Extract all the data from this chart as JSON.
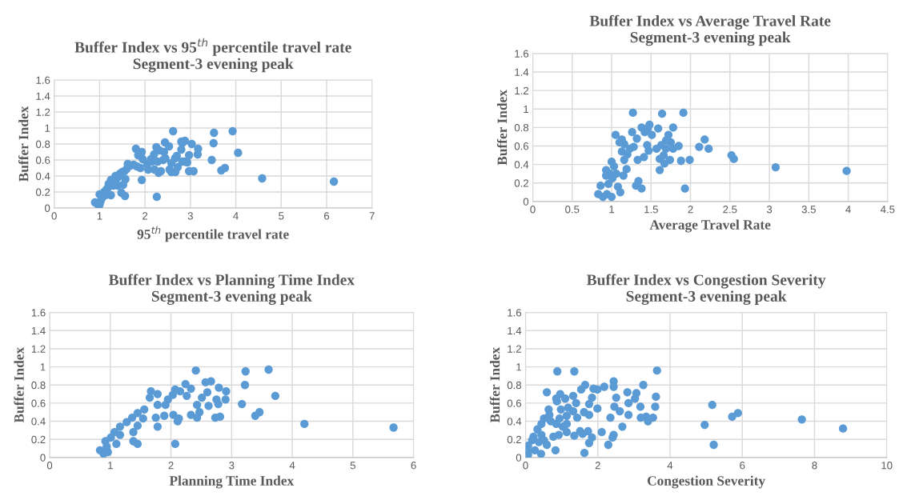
{
  "chart_data": [
    {
      "type": "scatter",
      "title": "Buffer Index vs 95$^{th}$ percentile travel rate\nSegment-3 evening peak",
      "xlabel": "95$^{th}$ percentile travel rate",
      "ylabel": "Buffer Index",
      "xlim": [
        0,
        7
      ],
      "xticks": [
        0,
        1,
        2,
        3,
        4,
        5,
        6,
        7
      ],
      "ylim": [
        0,
        1.6
      ],
      "yticks": [
        0,
        0.2,
        0.4,
        0.6,
        0.8,
        1,
        1.2,
        1.4,
        1.6
      ],
      "grid": true,
      "legend": false,
      "marker": "circle",
      "series": [
        {
          "color": "#5b9bd5",
          "x": [
            2.62,
            3.52,
            3.93,
            3.51,
            4.05,
            3.47,
            3.68,
            3.76,
            4.58,
            6.16,
            2.26,
            1.93,
            3.03,
            3.17,
            3.16,
            2.97,
            2.93,
            2.97,
            3.07,
            2.82,
            2.87,
            2.8,
            2.8,
            2.88,
            2.82,
            2.7,
            2.66,
            2.58,
            2.54,
            2.58,
            2.67,
            2.72,
            2.44,
            2.53,
            2.25,
            2.32,
            2.42,
            2.3,
            2.35,
            2.21,
            2.13,
            2.2,
            2.4,
            2.45,
            2.28,
            1.8,
            1.85,
            1.93,
            1.95,
            1.9,
            2.05,
            2.07,
            2.15,
            1.75,
            1.68,
            1.6,
            1.55,
            1.45,
            1.4,
            1.35,
            1.5,
            1.52,
            1.57,
            1.48,
            1.56,
            1.32,
            1.25,
            1.2,
            1.3,
            1.18,
            1.15,
            1.1,
            1.13,
            1.0,
            1.05,
            0.9,
            0.95,
            1.0,
            1.02,
            1.25,
            1.4,
            1.62,
            1.82
          ],
          "values": [
            0.96,
            0.94,
            0.96,
            0.81,
            0.69,
            0.6,
            0.47,
            0.5,
            0.37,
            0.33,
            0.14,
            0.35,
            0.8,
            0.74,
            0.67,
            0.66,
            0.57,
            0.46,
            0.46,
            0.58,
            0.58,
            0.73,
            0.83,
            0.84,
            0.81,
            0.65,
            0.62,
            0.56,
            0.48,
            0.45,
            0.45,
            0.51,
            0.82,
            0.77,
            0.76,
            0.72,
            0.7,
            0.44,
            0.46,
            0.48,
            0.61,
            0.67,
            0.6,
            0.62,
            0.58,
            0.74,
            0.66,
            0.7,
            0.61,
            0.5,
            0.55,
            0.48,
            0.58,
            0.54,
            0.53,
            0.49,
            0.46,
            0.43,
            0.38,
            0.4,
            0.45,
            0.29,
            0.36,
            0.19,
            0.15,
            0.33,
            0.35,
            0.3,
            0.28,
            0.25,
            0.23,
            0.2,
            0.16,
            0.17,
            0.12,
            0.07,
            0.05,
            0.04,
            0.08,
            0.16,
            0.28,
            0.55,
            0.52
          ]
        }
      ]
    },
    {
      "type": "scatter",
      "title": "Buffer Index vs Average Travel Rate\nSegment-3 evening peak",
      "xlabel": "Average Travel Rate",
      "ylabel": "Buffer Index",
      "xlim": [
        0,
        4.5
      ],
      "xticks": [
        0,
        0.5,
        1,
        1.5,
        2,
        2.5,
        3,
        3.5,
        4,
        4.5
      ],
      "ylim": [
        0,
        1.6
      ],
      "yticks": [
        0,
        0.2,
        0.4,
        0.6,
        0.8,
        1,
        1.2,
        1.4,
        1.6
      ],
      "grid": true,
      "legend": false,
      "marker": "circle",
      "series": [
        {
          "color": "#5b9bd5",
          "x": [
            1.27,
            1.64,
            1.91,
            3.98,
            3.08,
            2.52,
            2.55,
            2.11,
            2.18,
            2.23,
            1.99,
            1.88,
            1.93,
            1.85,
            1.78,
            1.72,
            1.69,
            1.75,
            1.78,
            1.69,
            1.74,
            1.67,
            1.66,
            1.61,
            1.61,
            1.63,
            1.57,
            1.59,
            1.51,
            1.48,
            1.46,
            1.42,
            1.38,
            1.47,
            1.45,
            1.41,
            1.33,
            1.26,
            1.32,
            1.28,
            1.23,
            1.2,
            1.16,
            1.13,
            1.1,
            1.05,
            1.13,
            1.16,
            1.34,
            1.31,
            1.38,
            1.19,
            1.15,
            1.11,
            1.0,
            1.03,
            0.93,
            0.98,
            0.93,
            1.01,
            0.96,
            0.86,
            0.83,
            0.89,
            0.94,
            1.0,
            1.08,
            1.06
          ],
          "values": [
            0.96,
            0.95,
            0.96,
            0.33,
            0.37,
            0.5,
            0.46,
            0.59,
            0.67,
            0.57,
            0.45,
            0.44,
            0.14,
            0.6,
            0.8,
            0.72,
            0.66,
            0.64,
            0.57,
            0.57,
            0.45,
            0.41,
            0.5,
            0.46,
            0.34,
            0.61,
            0.57,
            0.79,
            0.72,
            0.83,
            0.79,
            0.75,
            0.8,
            0.55,
            0.61,
            0.48,
            0.45,
            0.75,
            0.68,
            0.59,
            0.57,
            0.51,
            0.45,
            0.54,
            0.64,
            0.72,
            0.67,
            0.62,
            0.22,
            0.17,
            0.14,
            0.35,
            0.28,
            0.1,
            0.43,
            0.38,
            0.34,
            0.3,
            0.28,
            0.25,
            0.19,
            0.17,
            0.08,
            0.05,
            0.08,
            0.05,
            0.16,
            0.3
          ]
        }
      ]
    },
    {
      "type": "scatter",
      "title": "Buffer Index vs Planning Time Index\nSegment-3 evening peak",
      "xlabel": "Planning Time Index",
      "ylabel": "Buffer Index",
      "xlim": [
        0,
        6
      ],
      "xticks": [
        0,
        1,
        2,
        3,
        4,
        5,
        6
      ],
      "ylim": [
        0,
        1.6
      ],
      "yticks": [
        0,
        0.2,
        0.4,
        0.6,
        0.8,
        1,
        1.2,
        1.4,
        1.6
      ],
      "grid": true,
      "legend": false,
      "marker": "circle",
      "series": [
        {
          "color": "#5b9bd5",
          "x": [
            2.41,
            3.23,
            3.61,
            3.22,
            3.72,
            3.17,
            3.39,
            3.46,
            4.2,
            5.67,
            2.07,
            1.78,
            2.57,
            2.66,
            2.6,
            2.79,
            2.91,
            2.9,
            2.75,
            2.78,
            2.62,
            2.43,
            2.47,
            2.33,
            2.43,
            2.73,
            2.81,
            2.51,
            2.24,
            2.33,
            2.26,
            2.07,
            2.15,
            2.03,
            1.95,
            1.91,
            2.04,
            2.13,
            2.11,
            1.67,
            1.78,
            1.65,
            1.78,
            1.89,
            1.75,
            1.56,
            1.54,
            1.45,
            1.36,
            1.27,
            1.16,
            1.45,
            1.38,
            1.38,
            1.45,
            1.07,
            1.16,
            1.01,
            0.92,
            1.1,
            0.83,
            0.89,
            0.96,
            0.94
          ],
          "values": [
            0.96,
            0.95,
            0.97,
            0.8,
            0.68,
            0.59,
            0.46,
            0.5,
            0.37,
            0.33,
            0.15,
            0.34,
            0.83,
            0.84,
            0.72,
            0.77,
            0.73,
            0.64,
            0.64,
            0.59,
            0.57,
            0.58,
            0.5,
            0.47,
            0.44,
            0.44,
            0.45,
            0.66,
            0.81,
            0.76,
            0.68,
            0.75,
            0.73,
            0.69,
            0.64,
            0.58,
            0.47,
            0.43,
            0.4,
            0.73,
            0.7,
            0.66,
            0.58,
            0.46,
            0.44,
            0.53,
            0.43,
            0.49,
            0.44,
            0.39,
            0.34,
            0.35,
            0.28,
            0.18,
            0.15,
            0.28,
            0.25,
            0.22,
            0.18,
            0.15,
            0.08,
            0.04,
            0.06,
            0.12
          ]
        }
      ]
    },
    {
      "type": "scatter",
      "title": "Buffer Index vs Congestion Severity\nSegment-3 evening peak",
      "xlabel": "Congestion Severity",
      "ylabel": "Buffer Index",
      "xlim": [
        0,
        10
      ],
      "xticks": [
        0,
        2,
        4,
        6,
        8,
        10
      ],
      "ylim": [
        0,
        1.6
      ],
      "yticks": [
        0,
        0.2,
        0.4,
        0.6,
        0.8,
        1,
        1.2,
        1.4,
        1.6
      ],
      "grid": true,
      "legend": false,
      "marker": "circle",
      "series": [
        {
          "color": "#5b9bd5",
          "x": [
            0.88,
            1.35,
            3.64,
            8.79,
            7.65,
            5.17,
            4.96,
            5.21,
            5.72,
            5.88,
            3.26,
            3.61,
            3.59,
            3.53,
            3.39,
            3.34,
            3.19,
            3.18,
            3.07,
            3.03,
            2.85,
            2.85,
            2.82,
            2.68,
            2.61,
            2.51,
            2.44,
            2.44,
            2.46,
            2.44,
            2.41,
            2.29,
            2.35,
            2.18,
            2.11,
            1.99,
            1.88,
            1.99,
            1.84,
            1.76,
            1.76,
            1.65,
            1.54,
            1.62,
            1.51,
            1.58,
            1.73,
            1.84,
            1.76,
            1.63,
            1.35,
            1.32,
            1.4,
            1.32,
            1.43,
            1.18,
            1.14,
            1.1,
            0.96,
            0.85,
            0.87,
            0.98,
            0.94,
            0.59,
            0.64,
            0.66,
            0.51,
            0.7,
            0.44,
            0.33,
            0.85,
            1.03,
            1.14,
            0.77,
            0.92,
            1.14,
            0.22,
            0.44,
            0.18,
            0.07,
            0.07,
            0.07,
            0.43,
            0.83,
            0.26,
            0.59,
            0.51,
            0.37
          ],
          "values": [
            0.95,
            0.95,
            0.96,
            0.32,
            0.42,
            0.58,
            0.36,
            0.14,
            0.45,
            0.49,
            0.8,
            0.67,
            0.56,
            0.44,
            0.4,
            0.45,
            0.44,
            0.56,
            0.71,
            0.65,
            0.6,
            0.47,
            0.72,
            0.34,
            0.51,
            0.66,
            0.84,
            0.78,
            0.56,
            0.25,
            0.22,
            0.14,
            0.44,
            0.78,
            0.28,
            0.75,
            0.76,
            0.54,
            0.66,
            0.59,
            0.47,
            0.8,
            0.75,
            0.5,
            0.29,
            0.26,
            0.29,
            0.22,
            0.16,
            0.05,
            0.24,
            0.68,
            0.6,
            0.51,
            0.44,
            0.55,
            0.46,
            0.65,
            0.7,
            0.65,
            0.62,
            0.53,
            0.43,
            0.72,
            0.53,
            0.47,
            0.43,
            0.4,
            0.37,
            0.31,
            0.37,
            0.34,
            0.37,
            0.23,
            0.25,
            0.28,
            0.23,
            0.25,
            0.19,
            0.13,
            0.07,
            0.03,
            0.04,
            0.08,
            0.08,
            0.14,
            0.19,
            0.17
          ]
        }
      ]
    }
  ]
}
